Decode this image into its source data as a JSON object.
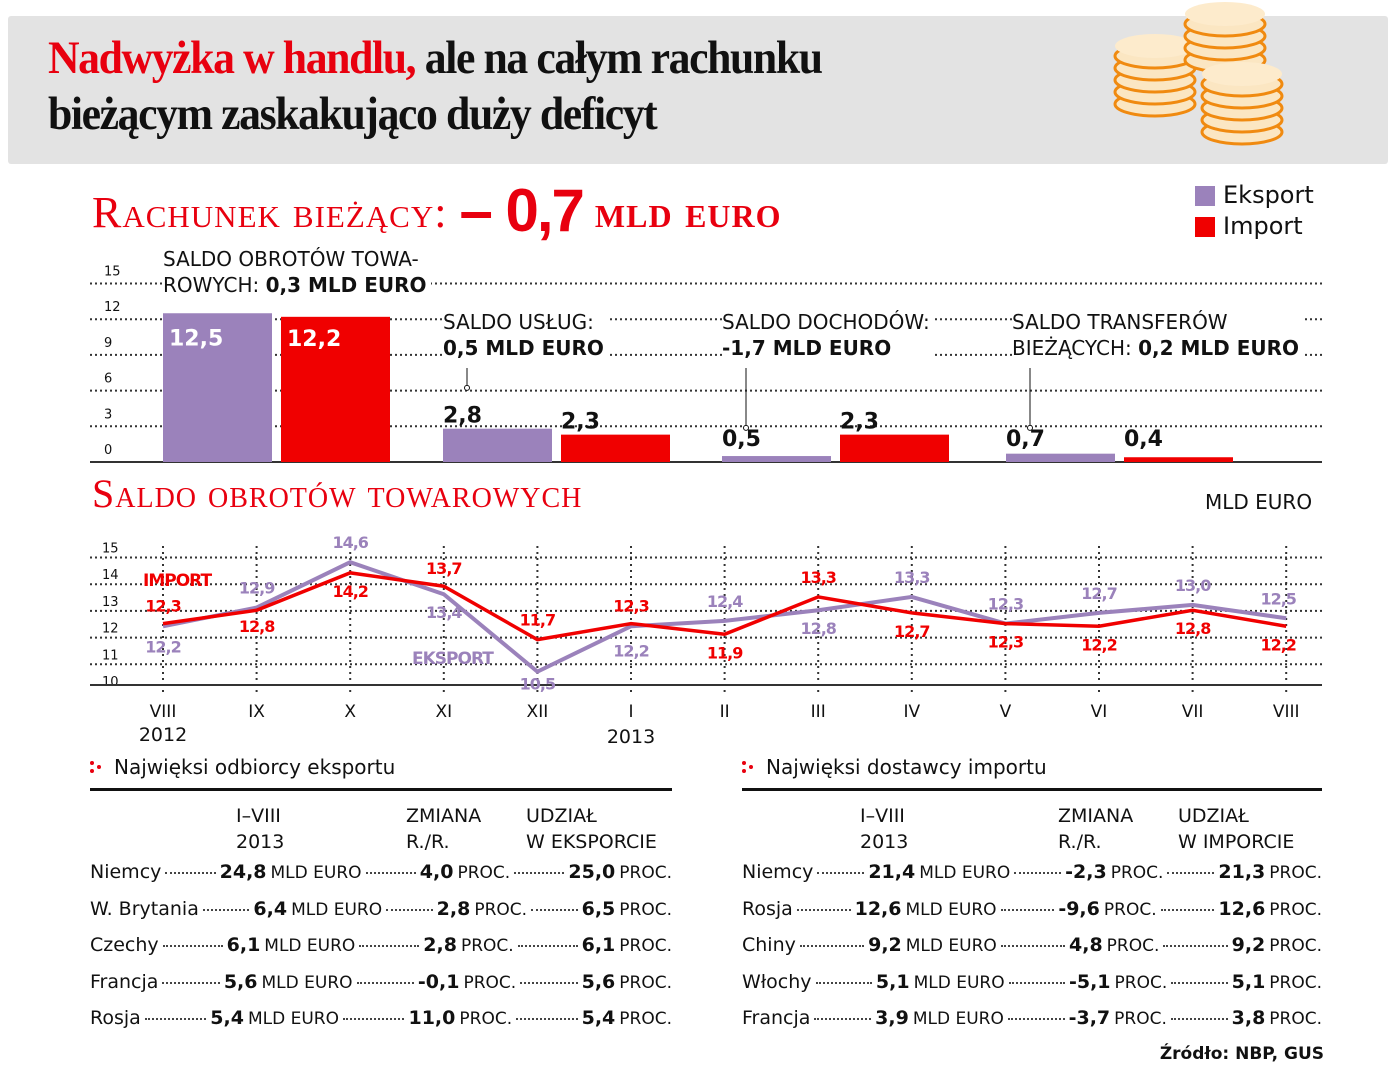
{
  "header": {
    "title_red": "Nadwyżka w handlu,",
    "title_rest_line1": "ale na całym rachunku",
    "title_line2": "bieżącym zaskakująco duży deficyt",
    "illustration": "coins-stack-icon"
  },
  "colors": {
    "eksport": "#9b82bb",
    "import": "#f00000",
    "accent_red": "#e8000f",
    "header_bg": "#e3e3e3"
  },
  "current_account": {
    "label": "Rachunek bieżący:",
    "value": "– 0,7",
    "unit": "mld euro"
  },
  "legend": {
    "eksport": "Eksport",
    "import": "Import"
  },
  "bar_annotations": [
    {
      "line1": "SALDO OBROTÓW TOWA-",
      "line2_prefix": "ROWYCH: ",
      "line2_bold": "0,3 MLD EURO"
    },
    {
      "line1": "SALDO USŁUG:",
      "line2_prefix": "",
      "line2_bold": "0,5 MLD EURO"
    },
    {
      "line1": "SALDO DOCHODÓW:",
      "line2_prefix": "",
      "line2_bold": "-1,7 MLD EURO"
    },
    {
      "line1": "SALDO TRANSFERÓW",
      "line2_prefix": "BIEŻĄCYCH: ",
      "line2_bold": "0,2 MLD EURO"
    }
  ],
  "line_chart": {
    "title": "Saldo obrotów towarowych",
    "unit": "MLD EURO",
    "series_label_import": "IMPORT",
    "series_label_eksport": "EKSPORT",
    "year_labels": [
      "2012",
      "2013"
    ]
  },
  "chart_data": [
    {
      "type": "bar",
      "title": "Rachunek bieżący: – 0,7 mld euro",
      "categories": [
        "Saldo obrotów towarowych",
        "Saldo usług",
        "Saldo dochodów",
        "Saldo transferów bieżących"
      ],
      "series": [
        {
          "name": "Eksport",
          "values": [
            12.5,
            2.8,
            0.5,
            0.7
          ]
        },
        {
          "name": "Import",
          "values": [
            12.2,
            2.3,
            2.3,
            0.4
          ]
        }
      ],
      "value_labels": {
        "Eksport": [
          "12,5",
          "2,8",
          "0,5",
          "0,7"
        ],
        "Import": [
          "12,2",
          "2,3",
          "2,3",
          "0,4"
        ]
      },
      "balances": [
        "0,3 MLD EURO",
        "0,5 MLD EURO",
        "-1,7 MLD EURO",
        "0,2 MLD EURO"
      ],
      "yticks": [
        0,
        3,
        6,
        9,
        12,
        15
      ],
      "ylim": [
        0,
        15
      ],
      "grid": true,
      "legend_position": "top-right"
    },
    {
      "type": "line",
      "title": "Saldo obrotów towarowych",
      "ylabel": "MLD EURO",
      "categories": [
        "VIII 2012",
        "IX",
        "X",
        "XI",
        "XII",
        "I 2013",
        "II",
        "III",
        "IV",
        "V",
        "VI",
        "VII",
        "VIII"
      ],
      "x_tick_labels": [
        "VIII",
        "IX",
        "X",
        "XI",
        "XII",
        "I",
        "II",
        "III",
        "IV",
        "V",
        "VI",
        "VII",
        "VIII"
      ],
      "series": [
        {
          "name": "Import",
          "values": [
            12.3,
            12.8,
            14.2,
            13.7,
            11.7,
            12.3,
            11.9,
            13.3,
            12.7,
            12.3,
            12.2,
            12.8,
            12.2
          ]
        },
        {
          "name": "Eksport",
          "values": [
            12.2,
            12.9,
            14.6,
            13.4,
            10.5,
            12.2,
            12.4,
            12.8,
            13.3,
            12.3,
            12.7,
            13.0,
            12.5
          ]
        }
      ],
      "yticks": [
        10,
        11,
        12,
        13,
        14,
        15
      ],
      "ylim": [
        10,
        15
      ],
      "grid": true
    },
    {
      "type": "table",
      "title": "Najwięksi odbiorcy eksportu",
      "columns": [
        "",
        "I–VIII 2013",
        "ZMIANA R./R.",
        "UDZIAŁ W EKSPORCIE"
      ],
      "rows": [
        [
          "Niemcy",
          "24,8 MLD EURO",
          "4,0 PROC.",
          "25,0 PROC."
        ],
        [
          "W. Brytania",
          "6,4 MLD EURO",
          "2,8 PROC.",
          "6,5 PROC."
        ],
        [
          "Czechy",
          "6,1 MLD EURO",
          "2,8 PROC.",
          "6,1 PROC."
        ],
        [
          "Francja",
          "5,6 MLD EURO",
          "-0,1 PROC.",
          "5,6 PROC."
        ],
        [
          "Rosja",
          "5,4 MLD EURO",
          "11,0 PROC.",
          "5,4 PROC."
        ]
      ]
    },
    {
      "type": "table",
      "title": "Najwięksi dostawcy importu",
      "columns": [
        "",
        "I–VIII 2013",
        "ZMIANA R./R.",
        "UDZIAŁ W IMPORCIE"
      ],
      "rows": [
        [
          "Niemcy",
          "21,4 MLD EURO",
          "-2,3 PROC.",
          "21,3 PROC."
        ],
        [
          "Rosja",
          "12,6 MLD EURO",
          "-9,6 PROC.",
          "12,6 PROC."
        ],
        [
          "Chiny",
          "9,2 MLD EURO",
          "4,8 PROC.",
          "9,2 PROC."
        ],
        [
          "Włochy",
          "5,1 MLD EURO",
          "-5,1 PROC.",
          "5,1 PROC."
        ],
        [
          "Francja",
          "3,9 MLD EURO",
          "-3,7 PROC.",
          "3,8 PROC."
        ]
      ]
    }
  ],
  "export_table": {
    "title": "Najwięksi odbiorcy eksportu",
    "head": {
      "c1a": "I–VIII",
      "c1b": "2013",
      "c2a": "ZMIANA",
      "c2b": "R./R.",
      "c3a": "UDZIAŁ",
      "c3b": "W EKSPORCIE"
    },
    "rows": [
      {
        "country": "Niemcy",
        "value": "24,8",
        "value_unit": "MLD EURO",
        "change": "4,0",
        "share": "25,0",
        "pct_unit": "PROC."
      },
      {
        "country": "W. Brytania",
        "value": "6,4",
        "value_unit": "MLD EURO",
        "change": "2,8",
        "share": "6,5",
        "pct_unit": "PROC."
      },
      {
        "country": "Czechy",
        "value": "6,1",
        "value_unit": "MLD EURO",
        "change": "2,8",
        "share": "6,1",
        "pct_unit": "PROC."
      },
      {
        "country": "Francja",
        "value": "5,6",
        "value_unit": "MLD EURO",
        "change": "-0,1",
        "share": "5,6",
        "pct_unit": "PROC."
      },
      {
        "country": "Rosja",
        "value": "5,4",
        "value_unit": "MLD EURO",
        "change": "11,0",
        "share": "5,4",
        "pct_unit": "PROC."
      }
    ]
  },
  "import_table": {
    "title": "Najwięksi dostawcy importu",
    "head": {
      "c1a": "I–VIII",
      "c1b": "2013",
      "c2a": "ZMIANA",
      "c2b": "R./R.",
      "c3a": "UDZIAŁ",
      "c3b": "W IMPORCIE"
    },
    "rows": [
      {
        "country": "Niemcy",
        "value": "21,4",
        "value_unit": "MLD EURO",
        "change": "-2,3",
        "share": "21,3",
        "pct_unit": "PROC."
      },
      {
        "country": "Rosja",
        "value": "12,6",
        "value_unit": "MLD EURO",
        "change": "-9,6",
        "share": "12,6",
        "pct_unit": "PROC."
      },
      {
        "country": "Chiny",
        "value": "9,2",
        "value_unit": "MLD EURO",
        "change": "4,8",
        "share": "9,2",
        "pct_unit": "PROC."
      },
      {
        "country": "Włochy",
        "value": "5,1",
        "value_unit": "MLD EURO",
        "change": "-5,1",
        "share": "5,1",
        "pct_unit": "PROC."
      },
      {
        "country": "Francja",
        "value": "3,9",
        "value_unit": "MLD EURO",
        "change": "-3,7",
        "share": "3,8",
        "pct_unit": "PROC."
      }
    ]
  },
  "source": "Źródło: NBP, GUS"
}
